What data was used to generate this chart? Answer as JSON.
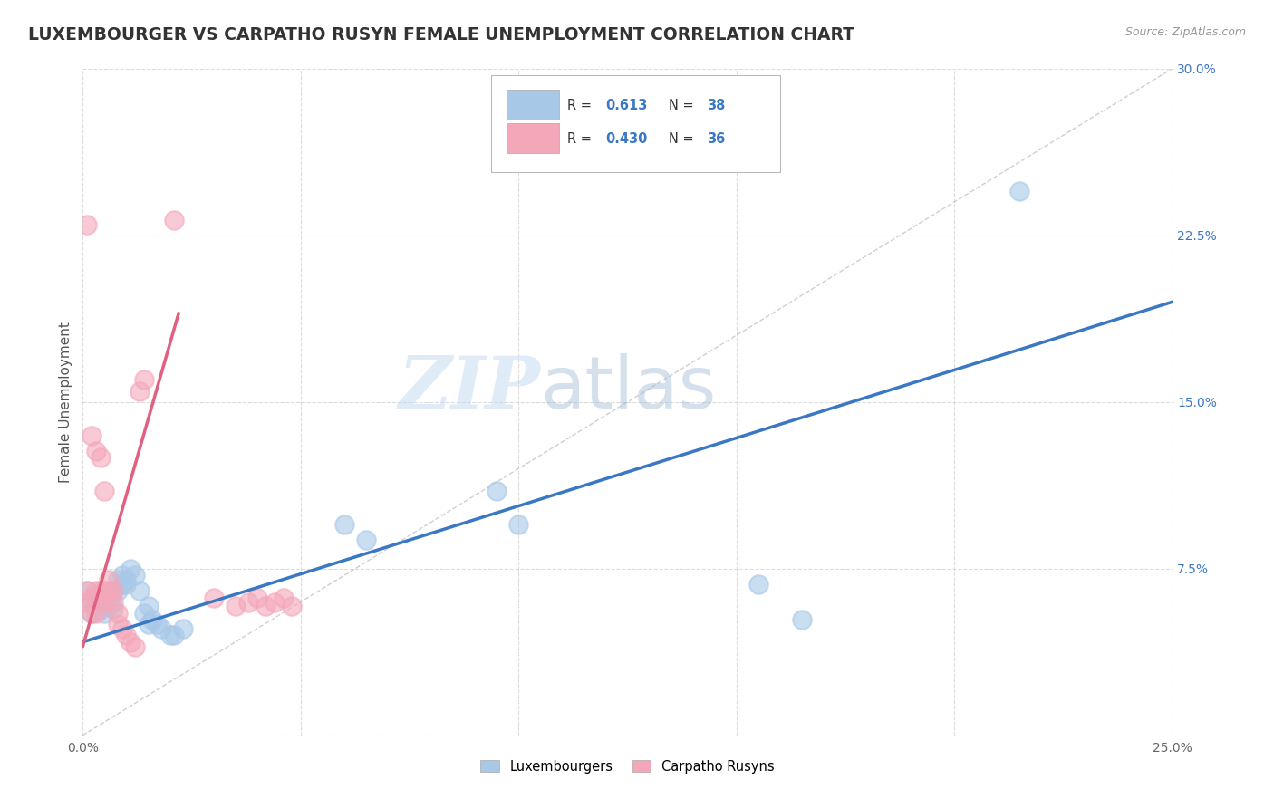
{
  "title": "LUXEMBOURGER VS CARPATHO RUSYN FEMALE UNEMPLOYMENT CORRELATION CHART",
  "source": "Source: ZipAtlas.com",
  "ylabel": "Female Unemployment",
  "xlim": [
    0,
    0.25
  ],
  "ylim": [
    0,
    0.3
  ],
  "xticks": [
    0.0,
    0.05,
    0.1,
    0.15,
    0.2,
    0.25
  ],
  "yticks": [
    0.0,
    0.075,
    0.15,
    0.225,
    0.3
  ],
  "xtick_labels": [
    "0.0%",
    "",
    "",
    "",
    "",
    "25.0%"
  ],
  "ytick_labels": [
    "",
    "7.5%",
    "15.0%",
    "22.5%",
    "30.0%"
  ],
  "blue_color": "#A8C8E8",
  "pink_color": "#F4A7B9",
  "blue_line_color": "#3A78C3",
  "pink_line_color": "#E06080",
  "grid_color": "#CCCCCC",
  "blue_scatter": [
    [
      0.001,
      0.065
    ],
    [
      0.002,
      0.06
    ],
    [
      0.002,
      0.055
    ],
    [
      0.003,
      0.058
    ],
    [
      0.003,
      0.062
    ],
    [
      0.004,
      0.057
    ],
    [
      0.004,
      0.063
    ],
    [
      0.005,
      0.06
    ],
    [
      0.005,
      0.055
    ],
    [
      0.006,
      0.058
    ],
    [
      0.006,
      0.062
    ],
    [
      0.007,
      0.057
    ],
    [
      0.007,
      0.065
    ],
    [
      0.008,
      0.07
    ],
    [
      0.008,
      0.065
    ],
    [
      0.009,
      0.072
    ],
    [
      0.009,
      0.068
    ],
    [
      0.01,
      0.07
    ],
    [
      0.01,
      0.068
    ],
    [
      0.011,
      0.075
    ],
    [
      0.012,
      0.072
    ],
    [
      0.013,
      0.065
    ],
    [
      0.014,
      0.055
    ],
    [
      0.015,
      0.058
    ],
    [
      0.015,
      0.05
    ],
    [
      0.016,
      0.052
    ],
    [
      0.017,
      0.05
    ],
    [
      0.018,
      0.048
    ],
    [
      0.02,
      0.045
    ],
    [
      0.021,
      0.045
    ],
    [
      0.023,
      0.048
    ],
    [
      0.06,
      0.095
    ],
    [
      0.065,
      0.088
    ],
    [
      0.095,
      0.11
    ],
    [
      0.1,
      0.095
    ],
    [
      0.155,
      0.068
    ],
    [
      0.165,
      0.052
    ],
    [
      0.215,
      0.245
    ]
  ],
  "pink_scatter": [
    [
      0.001,
      0.065
    ],
    [
      0.001,
      0.06
    ],
    [
      0.002,
      0.055
    ],
    [
      0.002,
      0.062
    ],
    [
      0.003,
      0.065
    ],
    [
      0.003,
      0.055
    ],
    [
      0.004,
      0.06
    ],
    [
      0.004,
      0.065
    ],
    [
      0.005,
      0.06
    ],
    [
      0.005,
      0.065
    ],
    [
      0.006,
      0.065
    ],
    [
      0.006,
      0.07
    ],
    [
      0.007,
      0.065
    ],
    [
      0.007,
      0.06
    ],
    [
      0.008,
      0.055
    ],
    [
      0.008,
      0.05
    ],
    [
      0.009,
      0.048
    ],
    [
      0.01,
      0.045
    ],
    [
      0.011,
      0.042
    ],
    [
      0.012,
      0.04
    ],
    [
      0.013,
      0.155
    ],
    [
      0.014,
      0.16
    ],
    [
      0.021,
      0.232
    ],
    [
      0.001,
      0.23
    ],
    [
      0.002,
      0.135
    ],
    [
      0.003,
      0.128
    ],
    [
      0.004,
      0.125
    ],
    [
      0.005,
      0.11
    ],
    [
      0.03,
      0.062
    ],
    [
      0.035,
      0.058
    ],
    [
      0.038,
      0.06
    ],
    [
      0.04,
      0.062
    ],
    [
      0.042,
      0.058
    ],
    [
      0.044,
      0.06
    ],
    [
      0.046,
      0.062
    ],
    [
      0.048,
      0.058
    ]
  ],
  "blue_trendline": [
    [
      0.0,
      0.042
    ],
    [
      0.25,
      0.195
    ]
  ],
  "pink_trendline": [
    [
      0.0,
      0.04
    ],
    [
      0.022,
      0.19
    ]
  ],
  "diagonal_line": [
    [
      0.0,
      0.0
    ],
    [
      0.25,
      0.3
    ]
  ]
}
